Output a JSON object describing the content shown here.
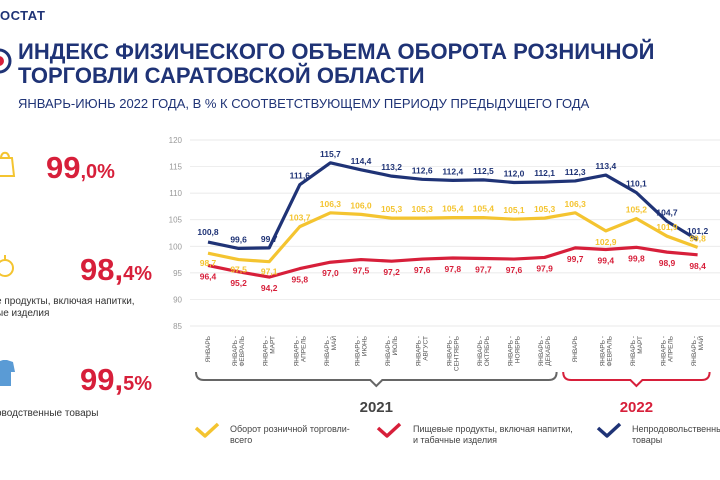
{
  "header": {
    "brand": "ОСТАТ",
    "title_line1": "ИНДЕКС ФИЗИЧЕСКОГО ОБЪЕМА ОБОРОТА РОЗНИЧНОЙ",
    "title_line2": "ТОРГОВЛИ САРАТОВСКОЙ ОБЛАСТИ",
    "subtitle": "ЯНВАРЬ-ИЮНЬ 2022 ГОДА, В % К СООТВЕТСТВУЮЩЕМУ ПЕРИОДУ ПРЕДЫДУЩЕГО ГОДА"
  },
  "kpis": [
    {
      "int": "99",
      "dec": ",0%",
      "label1": "",
      "label2": ""
    },
    {
      "int": "98,",
      "dec": "4%",
      "label1": "е продукты, включая напитки,",
      "label2": "ые изделия"
    },
    {
      "int": "99,",
      "dec": "5%",
      "label1": "оводственные товары",
      "label2": ""
    }
  ],
  "colors": {
    "total": "#f4c430",
    "food": "#d71f3a",
    "nonfood": "#1f3376",
    "axis": "#999999",
    "grid": "#e3e3e3"
  },
  "chart_data": {
    "type": "line",
    "ylim": [
      85,
      120
    ],
    "yticks": [
      "85",
      "90",
      "95",
      "100",
      "105",
      "110",
      "115",
      "120"
    ],
    "categories": [
      "ЯНВАРЬ",
      "ЯНВАРЬ - ФЕВРАЛЬ",
      "ЯНВАРЬ - МАРТ",
      "ЯНВАРЬ - АПРЕЛЬ",
      "ЯНВАРЬ - МАЙ",
      "ЯНВАРЬ - ИЮНЬ",
      "ЯНВАРЬ - ИЮЛЬ",
      "ЯНВАРЬ - АВГУСТ",
      "ЯНВАРЬ - СЕНТЯБРЬ",
      "ЯНВАРЬ - ОКТЯБРЬ",
      "ЯНВАРЬ - НОЯБРЬ",
      "ЯНВАРЬ - ДЕКАБРЬ",
      "ЯНВАРЬ",
      "ЯНВАРЬ - ФЕВРАЛЬ",
      "ЯНВАРЬ - МАРТ",
      "ЯНВАРЬ - АПРЕЛЬ",
      "ЯНВАРЬ - МАЙ"
    ],
    "groups": [
      {
        "label": "2021",
        "from": 0,
        "to": 11
      },
      {
        "label": "2022",
        "from": 12,
        "to": 16
      }
    ],
    "series": [
      {
        "name": "Оборот розничной торговли-всего",
        "key": "total",
        "values": [
          98.7,
          97.5,
          97.1,
          103.7,
          106.3,
          106.0,
          105.3,
          105.3,
          105.4,
          105.4,
          105.1,
          105.3,
          106.3,
          102.9,
          105.2,
          101.9,
          99.8
        ],
        "labels": [
          "98,7",
          "97,5",
          "97,1",
          "103,7",
          "106,3",
          "106,0",
          "105,3",
          "105,3",
          "105,4",
          "105,4",
          "105,1",
          "105,3",
          "106,3",
          "102,9",
          "105,2",
          "101,9",
          "99,8"
        ]
      },
      {
        "name": "Пищевые продукты, включая напитки, и табачные изделия",
        "key": "food",
        "values": [
          96.4,
          95.2,
          94.2,
          95.8,
          97.0,
          97.5,
          97.2,
          97.6,
          97.8,
          97.7,
          97.6,
          97.9,
          99.7,
          99.4,
          99.8,
          98.9,
          98.4
        ],
        "labels": [
          "96,4",
          "95,2",
          "94,2",
          "95,8",
          "97,0",
          "97,5",
          "97,2",
          "97,6",
          "97,8",
          "97,7",
          "97,6",
          "97,9",
          "99,7",
          "99,4",
          "99,8",
          "98,9",
          "98,4"
        ]
      },
      {
        "name": "Непродовольственные товары",
        "key": "nonfood",
        "values": [
          100.8,
          99.6,
          99.7,
          111.6,
          115.7,
          114.4,
          113.2,
          112.6,
          112.4,
          112.5,
          112.0,
          112.1,
          112.3,
          113.4,
          110.1,
          104.7,
          101.2
        ],
        "labels": [
          "100,8",
          "99,6",
          "99,7",
          "111,6",
          "115,7",
          "114,4",
          "113,2",
          "112,6",
          "112,4",
          "112,5",
          "112,0",
          "112,1",
          "112,3",
          "113,4",
          "110,1",
          "104,7",
          "101,2"
        ]
      }
    ],
    "legend": [
      {
        "key": "total",
        "line1": "Оборот розничной торговли-",
        "line2": "всего"
      },
      {
        "key": "food",
        "line1": "Пищевые продукты, включая напитки,",
        "line2": "и табачные изделия"
      },
      {
        "key": "nonfood",
        "line1": "Непродовольственные",
        "line2": "товары"
      }
    ]
  }
}
